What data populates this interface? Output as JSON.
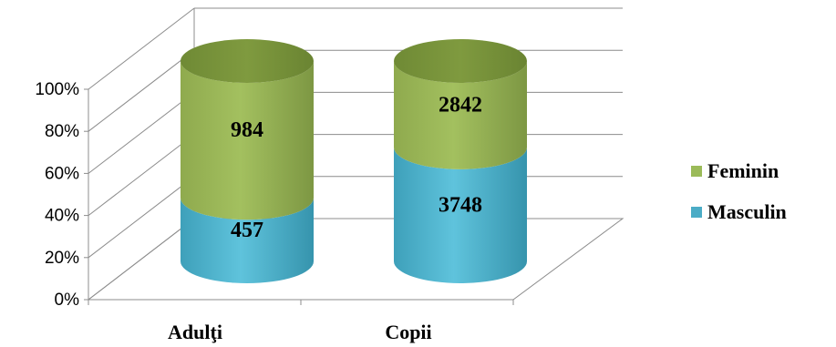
{
  "chart_data": {
    "type": "bar",
    "stacked": "percent",
    "style": "3d-cylinder",
    "categories": [
      "Adulţi",
      "Copii"
    ],
    "series": [
      {
        "name": "Masculin",
        "values": [
          457,
          3748
        ],
        "color": "#4bacc6"
      },
      {
        "name": "Feminin",
        "values": [
          984,
          2842
        ],
        "color": "#9bbb59"
      }
    ],
    "y_ticks": [
      "0%",
      "20%",
      "40%",
      "60%",
      "80%",
      "100%"
    ],
    "ylim": [
      0,
      100
    ],
    "grid": true,
    "legend_position": "right",
    "legend_order": [
      "Feminin",
      "Masculin"
    ]
  }
}
